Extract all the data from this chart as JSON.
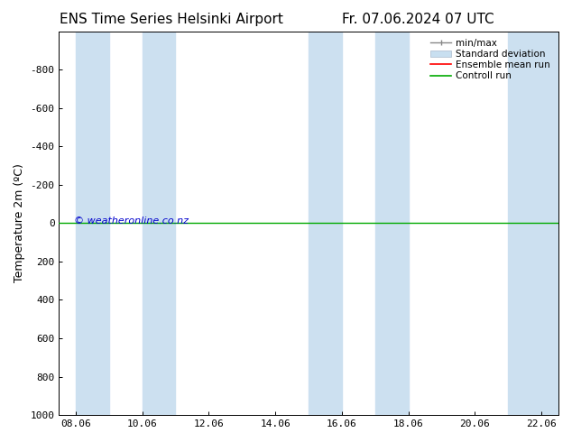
{
  "title_left": "ENS Time Series Helsinki Airport",
  "title_right": "Fr. 07.06.2024 07 UTC",
  "ylabel": "Temperature 2m (ºC)",
  "watermark": "© weatheronline.co.nz",
  "watermark_color": "#0000cc",
  "ylim_bottom": 1000,
  "ylim_top": -1000,
  "yticks": [
    -800,
    -600,
    -400,
    -200,
    0,
    200,
    400,
    600,
    800,
    1000
  ],
  "xlabel_ticks": [
    "08.06",
    "10.06",
    "12.06",
    "14.06",
    "16.06",
    "18.06",
    "20.06",
    "22.06"
  ],
  "x_num_ticks": [
    0,
    2,
    4,
    6,
    8,
    10,
    12,
    14
  ],
  "bg_color": "#ffffff",
  "plot_bg_color": "#ffffff",
  "shaded_bands_x": [
    [
      0.0,
      1.0
    ],
    [
      2.0,
      3.0
    ],
    [
      7.0,
      8.0
    ],
    [
      9.0,
      10.0
    ],
    [
      13.0,
      14.5
    ]
  ],
  "shaded_color": "#cce0f0",
  "green_line_y": 0,
  "legend_labels": [
    "min/max",
    "Standard deviation",
    "Ensemble mean run",
    "Controll run"
  ],
  "legend_colors": [
    "#aaaaaa",
    "#bbccdd",
    "#ff0000",
    "#00aa00"
  ],
  "title_fontsize": 11,
  "tick_fontsize": 8,
  "ylabel_fontsize": 9,
  "watermark_fontsize": 8
}
